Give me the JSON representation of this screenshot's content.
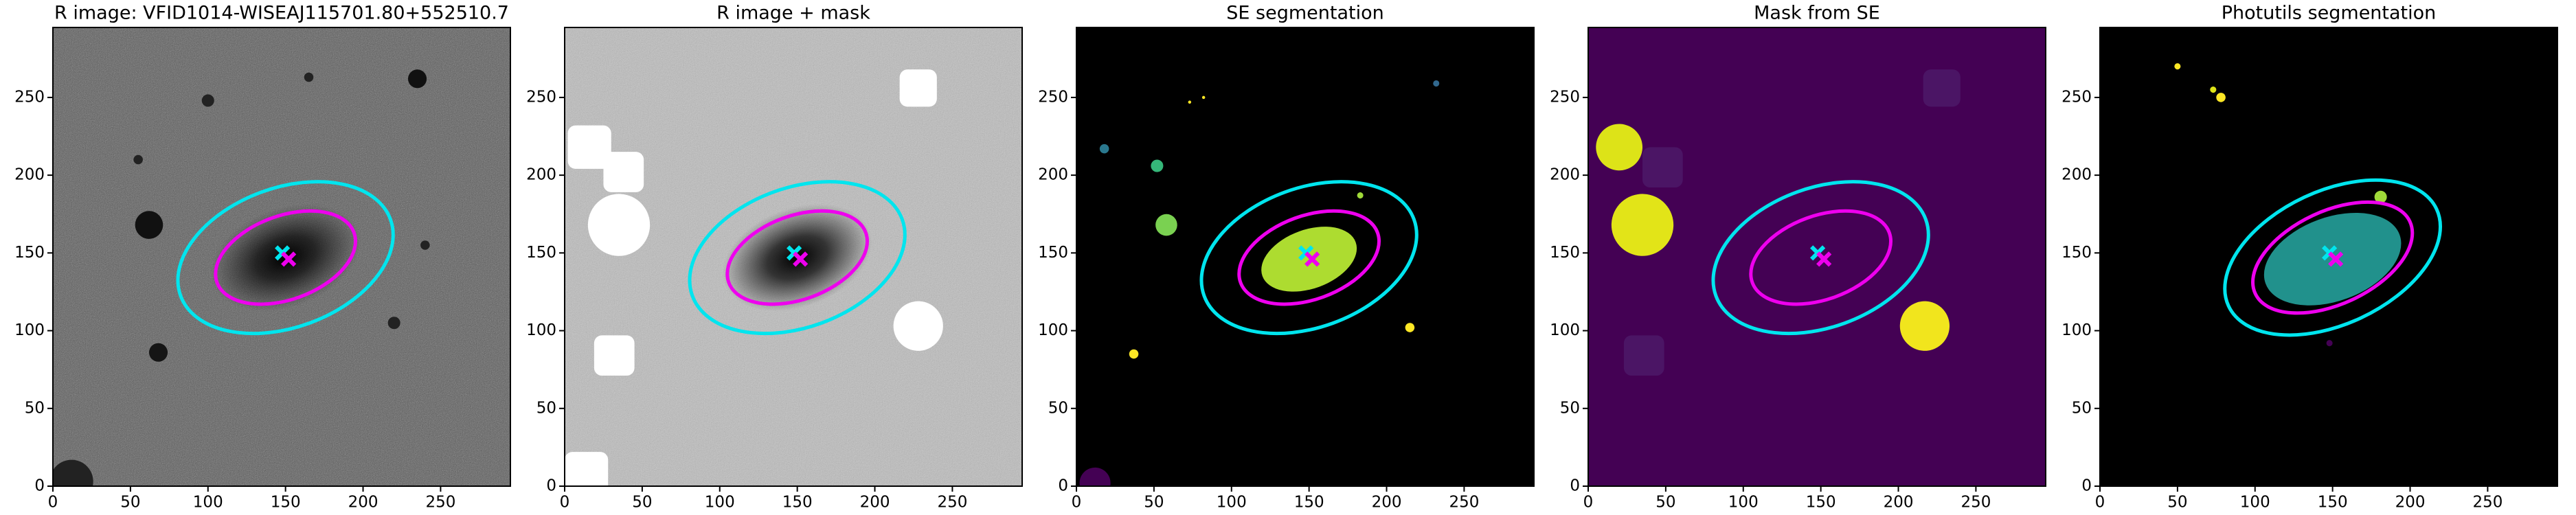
{
  "chart_data": [
    {
      "type": "image",
      "title": "R image: VFID1014-WISEAJ115701.80+552510.7",
      "background": "#5a5a5a",
      "xlim": [
        0,
        295
      ],
      "ylim": [
        0,
        295
      ],
      "xticks": [
        0,
        50,
        100,
        150,
        200,
        250
      ],
      "yticks": [
        0,
        50,
        100,
        150,
        200,
        250
      ]
    },
    {
      "type": "image",
      "title": "R image + mask",
      "background": "#bdbdbd",
      "xlim": [
        0,
        295
      ],
      "ylim": [
        0,
        295
      ],
      "xticks": [
        0,
        50,
        100,
        150,
        200,
        250
      ],
      "yticks": [
        0,
        50,
        100,
        150,
        200,
        250
      ]
    },
    {
      "type": "image",
      "title": "SE segmentation",
      "background": "#000000",
      "xlim": [
        0,
        295
      ],
      "ylim": [
        0,
        295
      ],
      "xticks": [
        0,
        50,
        100,
        150,
        200,
        250
      ],
      "yticks": [
        0,
        50,
        100,
        150,
        200,
        250
      ]
    },
    {
      "type": "image",
      "title": "Mask from SE",
      "background": "#440154",
      "xlim": [
        0,
        295
      ],
      "ylim": [
        0,
        295
      ],
      "xticks": [
        0,
        50,
        100,
        150,
        200,
        250
      ],
      "yticks": [
        0,
        50,
        100,
        150,
        200,
        250
      ]
    },
    {
      "type": "image",
      "title": "Photutils segmentation",
      "background": "#000000",
      "xlim": [
        0,
        295
      ],
      "ylim": [
        0,
        295
      ],
      "xticks": [
        0,
        50,
        100,
        150,
        200,
        250
      ],
      "yticks": [
        0,
        50,
        100,
        150,
        200,
        250
      ]
    }
  ]
}
